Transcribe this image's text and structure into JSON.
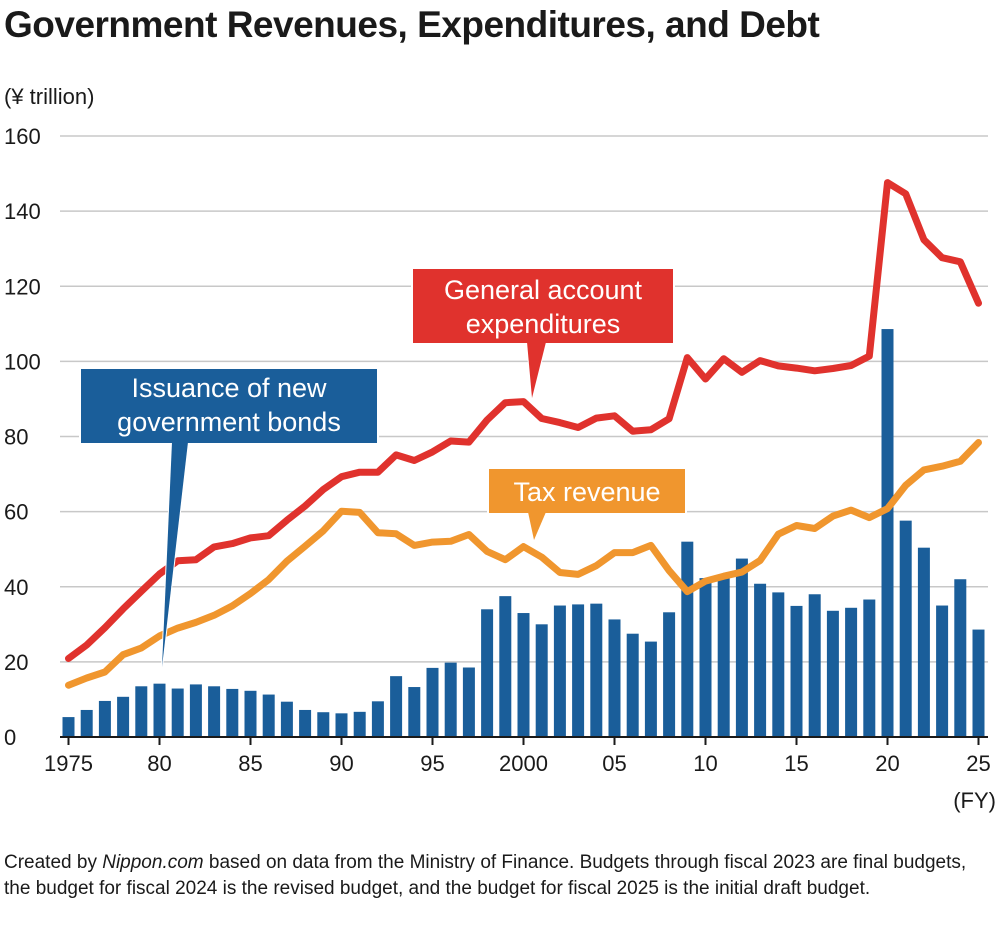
{
  "title": "Government Revenues, Expenditures, and Debt",
  "footnote": {
    "prefix": "Created by ",
    "brand": "Nippon.com",
    "suffix": " based on data from the Ministry of Finance. Budgets through fiscal 2023 are final budgets, the budget for fiscal 2024 is the revised budget, and the budget for fiscal 2025 is the initial draft budget."
  },
  "colors": {
    "expenditures": "#e0322d",
    "tax_revenue": "#f0962e",
    "bonds": "#1a5e9a",
    "grid": "#c8c8c8"
  },
  "chart_data": {
    "type": "bar+line",
    "ylabel": "(¥ trillion)",
    "xlabel": "(FY)",
    "ylim": [
      0,
      160
    ],
    "yticks": [
      0,
      20,
      40,
      60,
      80,
      100,
      120,
      140,
      160
    ],
    "grid": true,
    "x": [
      1975,
      1976,
      1977,
      1978,
      1979,
      1980,
      1981,
      1982,
      1983,
      1984,
      1985,
      1986,
      1987,
      1988,
      1989,
      1990,
      1991,
      1992,
      1993,
      1994,
      1995,
      1996,
      1997,
      1998,
      1999,
      2000,
      2001,
      2002,
      2003,
      2004,
      2005,
      2006,
      2007,
      2008,
      2009,
      2010,
      2011,
      2012,
      2013,
      2014,
      2015,
      2016,
      2017,
      2018,
      2019,
      2020,
      2021,
      2022,
      2023,
      2024,
      2025
    ],
    "xticks": [
      {
        "year": 1975,
        "label": "1975"
      },
      {
        "year": 1980,
        "label": "80"
      },
      {
        "year": 1985,
        "label": "85"
      },
      {
        "year": 1990,
        "label": "90"
      },
      {
        "year": 1995,
        "label": "95"
      },
      {
        "year": 2000,
        "label": "2000"
      },
      {
        "year": 2005,
        "label": "05"
      },
      {
        "year": 2010,
        "label": "10"
      },
      {
        "year": 2015,
        "label": "15"
      },
      {
        "year": 2020,
        "label": "20"
      },
      {
        "year": 2025,
        "label": "25"
      }
    ],
    "series": [
      {
        "key": "bonds",
        "name": "Issuance of new government bonds",
        "type": "bar",
        "values": [
          5.3,
          7.2,
          9.6,
          10.7,
          13.5,
          14.2,
          12.9,
          14.0,
          13.5,
          12.8,
          12.3,
          11.3,
          9.4,
          7.2,
          6.6,
          6.3,
          6.7,
          9.5,
          16.2,
          13.3,
          18.4,
          19.8,
          18.5,
          34.0,
          37.5,
          33.0,
          30.0,
          35.0,
          35.3,
          35.5,
          31.3,
          27.5,
          25.4,
          33.2,
          52.0,
          42.3,
          42.8,
          47.5,
          40.8,
          38.5,
          34.9,
          38.0,
          33.6,
          34.4,
          36.6,
          108.6,
          57.6,
          50.4,
          35.0,
          42.0,
          28.6
        ]
      },
      {
        "key": "expenditures",
        "name": "General account expenditures",
        "type": "line",
        "values": [
          20.9,
          24.5,
          29.1,
          34.1,
          38.8,
          43.4,
          46.9,
          47.2,
          50.6,
          51.5,
          53.0,
          53.6,
          57.7,
          61.5,
          65.9,
          69.3,
          70.5,
          70.5,
          75.1,
          73.6,
          75.9,
          78.8,
          78.5,
          84.4,
          89.0,
          89.3,
          84.8,
          83.7,
          82.4,
          84.9,
          85.5,
          81.4,
          81.8,
          84.7,
          101.0,
          95.3,
          100.7,
          97.1,
          100.2,
          98.8,
          98.2,
          97.5,
          98.1,
          98.9,
          101.4,
          147.6,
          144.6,
          132.4,
          127.6,
          126.5,
          115.5
        ]
      },
      {
        "key": "tax_revenue",
        "name": "Tax revenue",
        "type": "line",
        "values": [
          13.8,
          15.7,
          17.3,
          21.9,
          23.7,
          26.9,
          29.0,
          30.5,
          32.4,
          34.9,
          38.2,
          41.9,
          46.8,
          50.8,
          54.9,
          60.1,
          59.8,
          54.4,
          54.1,
          51.0,
          51.9,
          52.1,
          53.9,
          49.4,
          47.2,
          50.7,
          47.9,
          43.8,
          43.3,
          45.6,
          49.1,
          49.1,
          51.0,
          44.3,
          38.7,
          41.5,
          42.8,
          43.9,
          47.0,
          54.0,
          56.3,
          55.5,
          58.8,
          60.4,
          58.4,
          60.8,
          67.0,
          71.1,
          72.1,
          73.4,
          78.4
        ]
      }
    ],
    "annotations": [
      {
        "series": "expenditures",
        "lines": [
          "General account",
          "expenditures"
        ]
      },
      {
        "series": "bonds",
        "lines": [
          "Issuance of new",
          "government bonds"
        ]
      },
      {
        "series": "tax_revenue",
        "lines": [
          "Tax revenue"
        ]
      }
    ]
  }
}
